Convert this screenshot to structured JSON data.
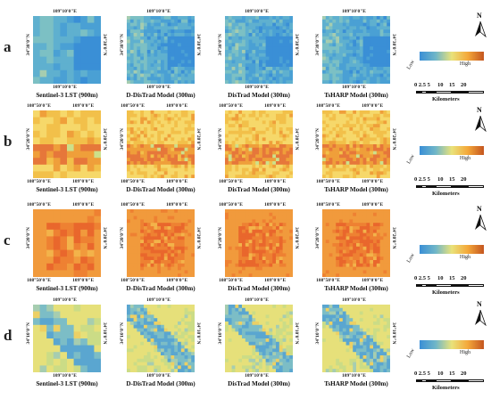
{
  "rows": [
    {
      "label": "a",
      "palette": "cool",
      "corner_labels": {
        "top": "109°10'0\"E",
        "left": "34°30'0\"N",
        "right": "34°30'0\"N",
        "bottom": "109°10'0\"E"
      },
      "captions": [
        "Sentinel-3 LST (900m)",
        "D-DisTrad Model (300m)",
        "DisTrad Model (300m)",
        "TsHARP Model (300m)"
      ]
    },
    {
      "label": "b",
      "palette": "warm",
      "corner_labels": {
        "top_left": "108°50'0\"E",
        "top_right": "109°0'0\"E",
        "left": "34°20'0\"N",
        "right": "34°20'0\"N",
        "bottom_left": "108°50'0\"E",
        "bottom_right": "109°0'0\"E"
      },
      "captions": [
        "Sentinel-3 LST (900m)",
        "D-DisTrad Model (300m)",
        "DisTrad Model (300m)",
        "TsHARP Model (300m)"
      ]
    },
    {
      "label": "c",
      "palette": "hot",
      "corner_labels": {
        "top_left": "108°50'0\"E",
        "top_right": "109°0'0\"E",
        "left": "34°20'0\"N",
        "right": "34°20'0\"N",
        "bottom_left": "108°50'0\"E",
        "bottom_right": "109°0'0\"E"
      },
      "captions": [
        "Sentinel-3 LST (900m)",
        "D-DisTrad Model (300m)",
        "DisTrad Model (300m)",
        "TsHARP Model (300m)"
      ]
    },
    {
      "label": "d",
      "palette": "mixed",
      "corner_labels": {
        "top": "109°10'0\"E",
        "left": "34°10'0\"N",
        "right": "34°10'0\"N",
        "bottom": "109°10'0\"E"
      },
      "captions": [
        "Sentinel-3 LST (900m)",
        "D-DisTrad Model (300m)",
        "DisTrad Model (300m)",
        "TsHARP Model (300m)"
      ]
    }
  ],
  "legend": {
    "low": "Low",
    "high": "High",
    "scale_ticks": "0 2.5 5     10    15    20",
    "scale_unit": "Kilometers",
    "north": "N",
    "colors": [
      "#3a8fd6",
      "#6fb6c8",
      "#e9e27a",
      "#f4a83a",
      "#c4551f"
    ]
  }
}
